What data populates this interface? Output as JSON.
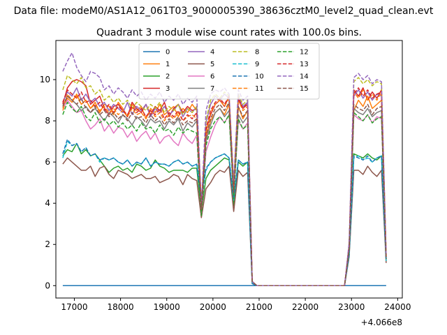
{
  "figure": {
    "suptitle": "Data file: modeM0/AS1A12_061T03_9000005390_38636cztM0_level2_quad_clean.evt"
  },
  "chart_data": {
    "type": "line",
    "title": "Quadrant 3 module wise count rates with 100.0s bins.",
    "xlabel": "",
    "ylabel": "",
    "x_offset_label": "+4.066e8",
    "xlim": [
      16600,
      24100
    ],
    "ylim": [
      -0.6,
      11.9
    ],
    "xticks": [
      17000,
      18000,
      19000,
      20000,
      21000,
      22000,
      23000,
      24000
    ],
    "yticks": [
      0,
      2,
      4,
      6,
      8,
      10
    ],
    "grid": false,
    "legend": {
      "position": "top-center",
      "columns": 4
    },
    "x": [
      16750,
      16850,
      16950,
      17050,
      17150,
      17250,
      17350,
      17450,
      17550,
      17650,
      17750,
      17850,
      17950,
      18050,
      18150,
      18250,
      18350,
      18450,
      18550,
      18650,
      18750,
      18850,
      18950,
      19050,
      19150,
      19250,
      19350,
      19450,
      19550,
      19650,
      19750,
      19850,
      19950,
      20050,
      20150,
      20250,
      20350,
      20450,
      20550,
      20650,
      20750,
      20850,
      20950,
      21050,
      21150,
      21250,
      21350,
      21450,
      21550,
      21650,
      21750,
      21850,
      21950,
      22050,
      22150,
      22250,
      22350,
      22450,
      22550,
      22650,
      22750,
      22850,
      22950,
      23050,
      23150,
      23250,
      23350,
      23450,
      23550,
      23650,
      23750
    ],
    "series": [
      {
        "name": "0",
        "color": "#1f77b4",
        "dash": "solid",
        "values": [
          0,
          0,
          0,
          0,
          0,
          0,
          0,
          0,
          0,
          0,
          0,
          0,
          0,
          0,
          0,
          0,
          0,
          0,
          0,
          0,
          0,
          0,
          0,
          0,
          0,
          0,
          0,
          0,
          0,
          0,
          0,
          0,
          0,
          0,
          0,
          0,
          0,
          0,
          0,
          0,
          0,
          0,
          0,
          0,
          0,
          0,
          0,
          0,
          0,
          0,
          0,
          0,
          0,
          0,
          0,
          0,
          0,
          0,
          0,
          0,
          0,
          0,
          0,
          0,
          0,
          0,
          0,
          0,
          0,
          0,
          0
        ]
      },
      {
        "name": "1",
        "color": "#ff7f0e",
        "dash": "solid",
        "values": [
          8.5,
          9.1,
          8.9,
          9.3,
          8.8,
          9.0,
          8.6,
          8.9,
          8.4,
          8.8,
          8.7,
          8.3,
          8.9,
          8.6,
          8.2,
          8.8,
          8.5,
          8.7,
          8.1,
          8.6,
          8.4,
          8.8,
          8.3,
          8.5,
          8.7,
          8.2,
          8.6,
          8.4,
          8.8,
          8.5,
          4.0,
          7.2,
          8.0,
          8.4,
          8.6,
          8.3,
          8.8,
          4.5,
          8.7,
          8.1,
          8.5,
          0.2,
          0,
          0,
          0,
          0,
          0,
          0,
          0,
          0,
          0,
          0,
          0,
          0,
          0,
          0,
          0,
          0,
          0,
          0,
          0,
          0,
          1.8,
          8.5,
          9.0,
          8.7,
          9.2,
          8.6,
          8.8,
          9.0,
          1.4
        ]
      },
      {
        "name": "2",
        "color": "#2ca02c",
        "dash": "solid",
        "values": [
          6.3,
          6.6,
          6.5,
          6.9,
          6.4,
          6.6,
          6.3,
          6.4,
          6.1,
          5.8,
          5.5,
          5.7,
          5.8,
          5.6,
          5.7,
          5.5,
          5.9,
          5.8,
          5.6,
          5.7,
          6.1,
          5.8,
          5.7,
          5.5,
          5.6,
          5.6,
          5.6,
          5.5,
          5.7,
          5.7,
          3.6,
          5.2,
          5.6,
          5.8,
          6.0,
          6.2,
          6.1,
          3.9,
          6.0,
          5.8,
          6.0,
          0.1,
          0,
          0,
          0,
          0,
          0,
          0,
          0,
          0,
          0,
          0,
          0,
          0,
          0,
          0,
          0,
          0,
          0,
          0,
          0,
          0,
          1.5,
          6.4,
          6.3,
          6.2,
          6.4,
          6.2,
          6.1,
          6.3,
          1.2
        ]
      },
      {
        "name": "3",
        "color": "#d62728",
        "dash": "solid",
        "values": [
          8.8,
          9.6,
          9.9,
          10.0,
          9.9,
          9.7,
          8.8,
          9.0,
          9.2,
          8.6,
          8.3,
          8.7,
          8.8,
          8.5,
          8.2,
          8.9,
          8.6,
          8.4,
          8.8,
          8.3,
          8.7,
          8.5,
          8.9,
          8.2,
          8.6,
          8.8,
          8.4,
          8.7,
          8.5,
          8.6,
          3.9,
          7.5,
          8.3,
          8.8,
          9.0,
          8.7,
          9.2,
          4.6,
          9.0,
          8.6,
          8.9,
          0.2,
          0,
          0,
          0,
          0,
          0,
          0,
          0,
          0,
          0,
          0,
          0,
          0,
          0,
          0,
          0,
          0,
          0,
          0,
          0,
          0,
          1.9,
          9.5,
          9.2,
          9.6,
          9.0,
          9.4,
          9.1,
          9.5,
          1.3
        ]
      },
      {
        "name": "4",
        "color": "#9467bd",
        "dash": "solid",
        "values": [
          8.9,
          9.4,
          9.2,
          9.6,
          9.0,
          9.3,
          8.9,
          9.1,
          8.7,
          8.9,
          8.5,
          8.8,
          8.6,
          8.4,
          8.9,
          8.3,
          8.7,
          8.5,
          8.8,
          8.2,
          8.6,
          8.4,
          8.7,
          8.3,
          8.5,
          8.8,
          8.2,
          8.6,
          8.4,
          8.7,
          3.7,
          7.9,
          8.8,
          9.2,
          9.0,
          9.3,
          9.1,
          4.8,
          9.2,
          8.7,
          8.9,
          0.2,
          0,
          0,
          0,
          0,
          0,
          0,
          0,
          0,
          0,
          0,
          0,
          0,
          0,
          0,
          0,
          0,
          0,
          0,
          0,
          0,
          2.0,
          9.2,
          9.5,
          9.1,
          9.4,
          9.0,
          9.3,
          9.2,
          1.4
        ]
      },
      {
        "name": "5",
        "color": "#8c564b",
        "dash": "solid",
        "values": [
          5.9,
          6.2,
          6.0,
          5.8,
          5.6,
          5.6,
          5.8,
          5.3,
          5.7,
          5.8,
          5.4,
          5.2,
          5.6,
          5.5,
          5.4,
          5.2,
          5.3,
          5.4,
          5.2,
          5.2,
          5.3,
          5.0,
          5.1,
          5.2,
          5.4,
          5.3,
          4.9,
          5.4,
          5.2,
          5.1,
          3.3,
          4.7,
          5.0,
          5.4,
          5.6,
          5.5,
          5.8,
          3.6,
          5.6,
          5.3,
          5.5,
          0.1,
          0,
          0,
          0,
          0,
          0,
          0,
          0,
          0,
          0,
          0,
          0,
          0,
          0,
          0,
          0,
          0,
          0,
          0,
          0,
          0,
          1.4,
          5.6,
          5.6,
          5.4,
          5.8,
          5.5,
          5.3,
          5.6,
          1.1
        ]
      },
      {
        "name": "6",
        "color": "#e377c2",
        "dash": "solid",
        "values": [
          8.6,
          9.0,
          8.7,
          8.4,
          8.5,
          8.0,
          7.6,
          7.8,
          8.1,
          7.5,
          7.8,
          7.4,
          7.7,
          7.6,
          7.2,
          7.5,
          7.0,
          7.3,
          7.5,
          7.1,
          7.4,
          6.9,
          7.2,
          7.3,
          7.0,
          6.8,
          7.4,
          7.1,
          6.9,
          7.3,
          3.5,
          6.5,
          7.2,
          7.8,
          8.2,
          7.9,
          8.3,
          4.3,
          8.0,
          7.6,
          7.9,
          0.2,
          0,
          0,
          0,
          0,
          0,
          0,
          0,
          0,
          0,
          0,
          0,
          0,
          0,
          0,
          0,
          0,
          0,
          0,
          0,
          0,
          1.7,
          8.3,
          8.1,
          8.0,
          8.3,
          7.9,
          8.2,
          8.1,
          1.3
        ]
      },
      {
        "name": "7",
        "color": "#7f7f7f",
        "dash": "solid",
        "values": [
          8.7,
          9.2,
          9.0,
          8.8,
          8.5,
          8.7,
          8.4,
          8.6,
          8.3,
          8.0,
          8.4,
          8.2,
          7.9,
          8.3,
          8.1,
          7.8,
          8.2,
          8.0,
          7.7,
          8.1,
          7.9,
          8.0,
          7.6,
          8.0,
          7.8,
          8.1,
          7.5,
          7.9,
          7.7,
          8.0,
          3.6,
          7.0,
          7.8,
          8.4,
          8.6,
          8.2,
          8.5,
          4.4,
          8.3,
          7.9,
          8.2,
          0.2,
          0,
          0,
          0,
          0,
          0,
          0,
          0,
          0,
          0,
          0,
          0,
          0,
          0,
          0,
          0,
          0,
          0,
          0,
          0,
          0,
          1.8,
          8.6,
          8.4,
          8.3,
          8.6,
          8.2,
          8.4,
          8.5,
          1.3
        ]
      },
      {
        "name": "8",
        "color": "#bcbd22",
        "dash": "dashed",
        "values": [
          9.5,
          10.2,
          10.0,
          9.8,
          10.1,
          9.6,
          9.7,
          9.3,
          9.5,
          9.0,
          9.2,
          8.9,
          9.1,
          8.8,
          9.0,
          8.6,
          8.9,
          8.7,
          8.5,
          8.8,
          8.6,
          8.9,
          8.4,
          8.7,
          8.5,
          8.8,
          8.3,
          8.6,
          8.4,
          8.7,
          3.8,
          8.0,
          9.0,
          9.3,
          9.1,
          9.4,
          9.2,
          4.9,
          9.3,
          8.8,
          9.0,
          0.2,
          0,
          0,
          0,
          0,
          0,
          0,
          0,
          0,
          0,
          0,
          0,
          0,
          0,
          0,
          0,
          0,
          0,
          0,
          0,
          0,
          2.0,
          9.9,
          10.1,
          9.8,
          10.0,
          9.7,
          9.9,
          9.8,
          1.4
        ]
      },
      {
        "name": "9",
        "color": "#17becf",
        "dash": "dashed",
        "values": [
          6.2,
          7.0,
          6.8,
          6.9,
          6.5,
          6.7,
          6.3,
          6.4,
          6.0,
          6.2,
          6.1,
          6.2,
          6.0,
          5.9,
          6.1,
          5.8,
          6.0,
          5.9,
          6.2,
          5.8,
          6.0,
          5.9,
          5.9,
          5.8,
          6.0,
          6.1,
          5.9,
          6.0,
          5.8,
          5.9,
          4.4,
          5.6,
          6.0,
          6.2,
          6.3,
          6.4,
          6.2,
          4.1,
          6.1,
          5.9,
          6.0,
          0.1,
          0,
          0,
          0,
          0,
          0,
          0,
          0,
          0,
          0,
          0,
          0,
          0,
          0,
          0,
          0,
          0,
          0,
          0,
          0,
          0,
          1.5,
          6.2,
          6.3,
          6.1,
          6.2,
          6.0,
          6.2,
          6.3,
          1.2
        ]
      },
      {
        "name": "10",
        "color": "#1f77b4",
        "dash": "dashed",
        "values": [
          6.4,
          7.1,
          6.8,
          6.9,
          6.5,
          6.7,
          6.3,
          6.4,
          6.1,
          6.2,
          6.1,
          6.2,
          6.0,
          5.9,
          6.1,
          5.8,
          6.0,
          5.9,
          6.2,
          5.8,
          6.0,
          5.9,
          5.9,
          5.8,
          6.0,
          6.1,
          5.9,
          6.0,
          5.8,
          5.9,
          4.0,
          5.7,
          6.0,
          6.2,
          6.3,
          6.4,
          6.2,
          4.2,
          6.1,
          5.9,
          6.0,
          0.1,
          0,
          0,
          0,
          0,
          0,
          0,
          0,
          0,
          0,
          0,
          0,
          0,
          0,
          0,
          0,
          0,
          0,
          0,
          0,
          0,
          1.5,
          6.3,
          6.2,
          6.1,
          6.3,
          6.0,
          6.2,
          6.3,
          1.2
        ]
      },
      {
        "name": "11",
        "color": "#ff7f0e",
        "dash": "dashed",
        "values": [
          8.6,
          9.3,
          9.0,
          9.2,
          8.8,
          9.0,
          8.6,
          8.8,
          8.5,
          8.7,
          8.4,
          8.6,
          8.3,
          8.5,
          8.2,
          8.6,
          8.3,
          8.4,
          8.1,
          8.5,
          8.2,
          8.4,
          8.0,
          8.3,
          8.1,
          8.4,
          8.0,
          8.2,
          8.3,
          8.1,
          3.9,
          7.4,
          8.4,
          8.8,
          9.0,
          8.7,
          9.1,
          4.7,
          9.0,
          8.5,
          8.7,
          0.2,
          0,
          0,
          0,
          0,
          0,
          0,
          0,
          0,
          0,
          0,
          0,
          0,
          0,
          0,
          0,
          0,
          0,
          0,
          0,
          0,
          1.9,
          9.4,
          9.1,
          9.5,
          9.0,
          9.3,
          9.0,
          9.4,
          1.4
        ]
      },
      {
        "name": "12",
        "color": "#2ca02c",
        "dash": "dashed",
        "values": [
          8.3,
          8.9,
          8.6,
          8.4,
          8.7,
          8.2,
          8.0,
          8.4,
          7.9,
          8.1,
          7.8,
          8.0,
          7.7,
          7.9,
          7.6,
          7.8,
          7.5,
          7.9,
          7.6,
          7.7,
          7.4,
          7.8,
          7.5,
          7.6,
          7.3,
          7.7,
          7.4,
          7.6,
          7.5,
          7.4,
          3.4,
          6.8,
          7.6,
          8.0,
          8.2,
          7.9,
          8.3,
          4.2,
          8.1,
          7.6,
          7.8,
          0.2,
          0,
          0,
          0,
          0,
          0,
          0,
          0,
          0,
          0,
          0,
          0,
          0,
          0,
          0,
          0,
          0,
          0,
          0,
          0,
          0,
          1.7,
          8.4,
          8.2,
          8.0,
          8.3,
          7.9,
          8.1,
          8.2,
          1.3
        ]
      },
      {
        "name": "13",
        "color": "#d62728",
        "dash": "dashed",
        "values": [
          8.9,
          9.5,
          9.3,
          9.1,
          9.4,
          8.9,
          9.0,
          8.7,
          8.9,
          8.5,
          8.8,
          8.4,
          8.7,
          8.5,
          8.3,
          8.7,
          8.4,
          8.6,
          8.2,
          8.5,
          8.3,
          8.6,
          8.1,
          8.4,
          8.2,
          8.5,
          8.0,
          8.3,
          8.1,
          8.4,
          3.8,
          7.6,
          8.5,
          8.9,
          9.1,
          8.8,
          9.2,
          4.6,
          9.1,
          8.6,
          8.8,
          0.2,
          0,
          0,
          0,
          0,
          0,
          0,
          0,
          0,
          0,
          0,
          0,
          0,
          0,
          0,
          0,
          0,
          0,
          0,
          0,
          0,
          1.9,
          9.3,
          9.6,
          9.2,
          9.5,
          9.1,
          9.3,
          9.4,
          1.4
        ]
      },
      {
        "name": "14",
        "color": "#9467bd",
        "dash": "dashed",
        "values": [
          10.4,
          10.9,
          11.3,
          10.6,
          10.2,
          9.9,
          10.4,
          10.3,
          10.1,
          9.5,
          9.7,
          9.3,
          9.6,
          9.4,
          9.1,
          9.5,
          9.2,
          9.4,
          9.0,
          9.3,
          9.1,
          9.4,
          8.9,
          9.2,
          9.0,
          9.3,
          8.8,
          9.1,
          8.9,
          9.2,
          3.9,
          8.5,
          9.3,
          9.5,
          9.4,
          9.6,
          9.3,
          5.0,
          9.5,
          9.0,
          9.2,
          0.2,
          0,
          0,
          0,
          0,
          0,
          0,
          0,
          0,
          0,
          0,
          0,
          0,
          0,
          0,
          0,
          0,
          0,
          0,
          0,
          0,
          2.1,
          10.1,
          10.3,
          10.0,
          10.2,
          9.8,
          10.0,
          9.9,
          1.5
        ]
      },
      {
        "name": "15",
        "color": "#8c564b",
        "dash": "dashed",
        "values": [
          8.7,
          9.2,
          9.0,
          8.8,
          9.1,
          8.6,
          8.4,
          8.7,
          8.3,
          8.5,
          8.2,
          8.4,
          8.1,
          8.3,
          8.0,
          8.4,
          8.1,
          8.2,
          7.9,
          8.3,
          8.0,
          8.2,
          7.8,
          8.1,
          7.9,
          8.2,
          7.8,
          8.0,
          7.9,
          8.1,
          3.7,
          7.2,
          8.1,
          8.6,
          8.8,
          8.5,
          8.9,
          4.5,
          8.7,
          8.2,
          8.5,
          0.2,
          0,
          0,
          0,
          0,
          0,
          0,
          0,
          0,
          0,
          0,
          0,
          0,
          0,
          0,
          0,
          0,
          0,
          0,
          0,
          0,
          1.8,
          8.8,
          8.6,
          8.5,
          8.8,
          8.3,
          8.6,
          8.7,
          1.3
        ]
      }
    ]
  }
}
